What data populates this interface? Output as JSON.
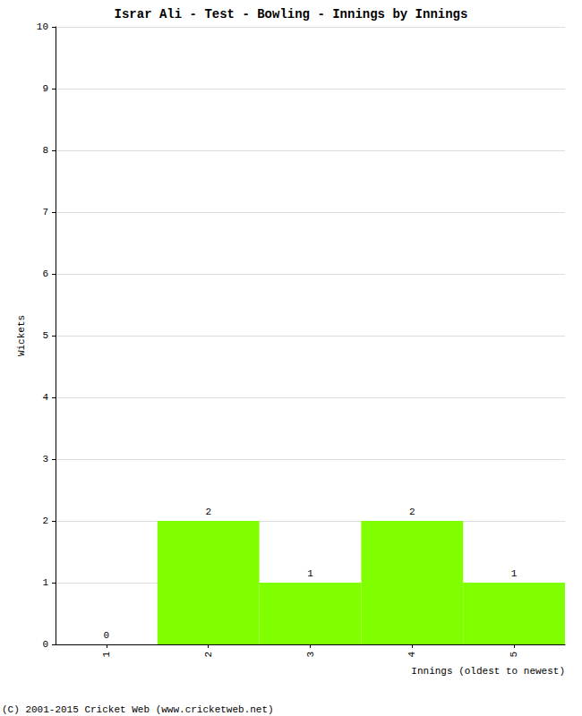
{
  "chart_data": {
    "type": "bar",
    "title": "Israr Ali - Test - Bowling - Innings by Innings",
    "x_label": "Innings (oldest to newest)",
    "y_label": "Wickets",
    "categories": [
      "1",
      "2",
      "3",
      "4",
      "5"
    ],
    "values": [
      0,
      2,
      1,
      2,
      1
    ],
    "color": "#80ff00",
    "ylim": [
      0,
      10
    ],
    "yticks": [
      0,
      1,
      2,
      3,
      4,
      5,
      6,
      7,
      8,
      9,
      10
    ],
    "grid": true,
    "data_labels": true,
    "annotations": [
      "(C) 2001-2015 Cricket Web (www.cricketweb.net)"
    ]
  }
}
